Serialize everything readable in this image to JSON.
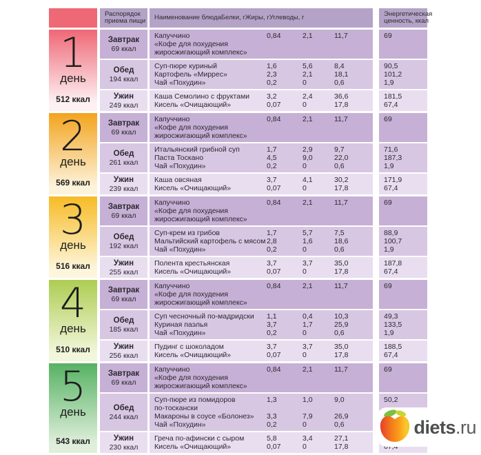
{
  "header": {
    "schedule": "Распорядок\nприема пищи",
    "dish": "Наименование блюда",
    "protein": "Белки, г",
    "fat": "Жиры, г",
    "carbs": "Углеводы, г",
    "energy": "Энергетическая\nценность, ккал",
    "accent_color": "#ee6875"
  },
  "days": [
    {
      "number": "1",
      "label": "день",
      "total": "512 ккал",
      "color_top": "#ee6875",
      "color_bottom": "#fdf1f3",
      "meals": [
        {
          "name": "Завтрак",
          "kcal": "69 ккал",
          "lines": [
            "Капуччино",
            "«Кофе для похудения",
            "жиросжигающий комплекс»"
          ],
          "protein": [
            "0,84"
          ],
          "fat": [
            "2,1"
          ],
          "carbs": [
            "11,7"
          ],
          "energy": [
            "69"
          ]
        },
        {
          "name": "Обед",
          "kcal": "194 ккал",
          "lines": [
            "Суп-пюре куриный",
            "Картофель «Миррес»",
            "Чай «Похудин»"
          ],
          "protein": [
            "1,6",
            "2,3",
            "0,2"
          ],
          "fat": [
            "5,6",
            "2,1",
            "0"
          ],
          "carbs": [
            "8,4",
            "18,1",
            "0,6"
          ],
          "energy": [
            "90,5",
            "101,2",
            "1,9"
          ]
        },
        {
          "name": "Ужин",
          "kcal": "249 ккал",
          "lines": [
            "Каша Семолино с фруктами",
            "Кисель «Очищающий»"
          ],
          "protein": [
            "3,2",
            "0,07"
          ],
          "fat": [
            "2,4",
            "0"
          ],
          "carbs": [
            "36,6",
            "17,8"
          ],
          "energy": [
            "181,5",
            "67,4"
          ]
        }
      ]
    },
    {
      "number": "2",
      "label": "день",
      "total": "569 ккал",
      "color_top": "#f3a41e",
      "color_bottom": "#fdf2da",
      "meals": [
        {
          "name": "Завтрак",
          "kcal": "69 ккал",
          "lines": [
            "Капуччино",
            "«Кофе для похудения",
            "жиросжигающий комплекс»"
          ],
          "protein": [
            "0,84"
          ],
          "fat": [
            "2,1"
          ],
          "carbs": [
            "11,7"
          ],
          "energy": [
            "69"
          ]
        },
        {
          "name": "Обед",
          "kcal": "261 ккал",
          "lines": [
            "Итальянский грибной суп",
            "Паста Тоскано",
            "Чай «Похудин»"
          ],
          "protein": [
            "1,7",
            "4,5",
            "0,2"
          ],
          "fat": [
            "2,9",
            "9,0",
            "0"
          ],
          "carbs": [
            "9,7",
            "22,0",
            "0,6"
          ],
          "energy": [
            "71,6",
            "187,3",
            "1,9"
          ]
        },
        {
          "name": "Ужин",
          "kcal": "239 ккал",
          "lines": [
            "Каша овсяная",
            "Кисель «Очищающий»"
          ],
          "protein": [
            "3,7",
            "0,07"
          ],
          "fat": [
            "4,1",
            "0"
          ],
          "carbs": [
            "30,2",
            "17,8"
          ],
          "energy": [
            "171,9",
            "67,4"
          ]
        }
      ]
    },
    {
      "number": "3",
      "label": "день",
      "total": "516 ккал",
      "color_top": "#f7bb25",
      "color_bottom": "#fdf6dc",
      "meals": [
        {
          "name": "Завтрак",
          "kcal": "69 ккал",
          "lines": [
            "Капуччино",
            "«Кофе для похудения",
            "жиросжигающий комплекс»"
          ],
          "protein": [
            "0,84"
          ],
          "fat": [
            "2,1"
          ],
          "carbs": [
            "11,7"
          ],
          "energy": [
            "69"
          ]
        },
        {
          "name": "Обед",
          "kcal": "192 ккал",
          "lines": [
            "Суп-крем из грибов",
            "Мальтийский картофель с мясом",
            "Чай «Похудин»"
          ],
          "protein": [
            "1,7",
            "2,8",
            "0,2"
          ],
          "fat": [
            "5,7",
            "1,6",
            "0"
          ],
          "carbs": [
            "7,5",
            "18,6",
            "0,6"
          ],
          "energy": [
            "88,9",
            "100,7",
            "1,9"
          ]
        },
        {
          "name": "Ужин",
          "kcal": "255 ккал",
          "lines": [
            "Полента крестьянская",
            "Кисель «Очищающий»"
          ],
          "protein": [
            "3,7",
            "0,07"
          ],
          "fat": [
            "3,7",
            "0"
          ],
          "carbs": [
            "35,0",
            "17,8"
          ],
          "energy": [
            "187,8",
            "67,4"
          ]
        }
      ]
    },
    {
      "number": "4",
      "label": "день",
      "total": "510 ккал",
      "color_top": "#adcd52",
      "color_bottom": "#f2f6db",
      "meals": [
        {
          "name": "Завтрак",
          "kcal": "69 ккал",
          "lines": [
            "Капуччино",
            "«Кофе для похудения",
            "жиросжигающий комплекс»"
          ],
          "protein": [
            "0,84"
          ],
          "fat": [
            "2,1"
          ],
          "carbs": [
            "11,7"
          ],
          "energy": [
            "69"
          ]
        },
        {
          "name": "Обед",
          "kcal": "185 ккал",
          "lines": [
            "Суп чесночный по-мадридски",
            "Куриная паэлья",
            "Чай «Похудин»"
          ],
          "protein": [
            "1,1",
            "3,7",
            "0,2"
          ],
          "fat": [
            "0,4",
            "1,7",
            "0"
          ],
          "carbs": [
            "10,3",
            "25,9",
            "0,6"
          ],
          "energy": [
            "49,3",
            "133,5",
            "1,9"
          ]
        },
        {
          "name": "Ужин",
          "kcal": "256 ккал",
          "lines": [
            "Пудинг с шоколадом",
            "Кисель «Очищающий»"
          ],
          "protein": [
            "3,7",
            "0,07"
          ],
          "fat": [
            "3,7",
            "0"
          ],
          "carbs": [
            "35,0",
            "17,8"
          ],
          "energy": [
            "188,5",
            "67,4"
          ]
        }
      ]
    },
    {
      "number": "5",
      "label": "день",
      "total": "543 ккал",
      "color_top": "#56b263",
      "color_bottom": "#dfefdb",
      "meals": [
        {
          "name": "Завтрак",
          "kcal": "69 ккал",
          "lines": [
            "Капуччино",
            "«Кофе для похудения",
            "жиросжигающий комплекс»"
          ],
          "protein": [
            "0,84"
          ],
          "fat": [
            "2,1"
          ],
          "carbs": [
            "11,7"
          ],
          "energy": [
            "69"
          ]
        },
        {
          "name": "Обед",
          "kcal": "244 ккал",
          "lines": [
            "Суп-пюре из помидоров",
            "по-тоскански",
            "Макароны в соусе «Болонез»",
            "Чай «Похудин»"
          ],
          "protein": [
            "1,3",
            "",
            "3,3",
            "0,2"
          ],
          "fat": [
            "1,0",
            "",
            "7,9",
            "0"
          ],
          "carbs": [
            "9,0",
            "",
            "26,9",
            "0,6"
          ],
          "energy": [
            "50,2",
            "",
            "192,0",
            "1,9"
          ]
        },
        {
          "name": "Ужин",
          "kcal": "230 ккал",
          "lines": [
            "Греча по-афински с сыром",
            "Кисель «Очищающий»"
          ],
          "protein": [
            "5,8",
            "0,07"
          ],
          "fat": [
            "3,4",
            "0"
          ],
          "carbs": [
            "27,1",
            "17,8"
          ],
          "energy": [
            "162,2",
            "67,4"
          ]
        }
      ]
    }
  ],
  "logo": {
    "bold": "diets",
    "regular": ".ru",
    "apple_red": "#e4402e",
    "apple_orange": "#f47b1b",
    "apple_yellow": "#fcc62a",
    "leaf_green": "#7fbf3f",
    "leaf_yellow": "#c7d62e"
  }
}
